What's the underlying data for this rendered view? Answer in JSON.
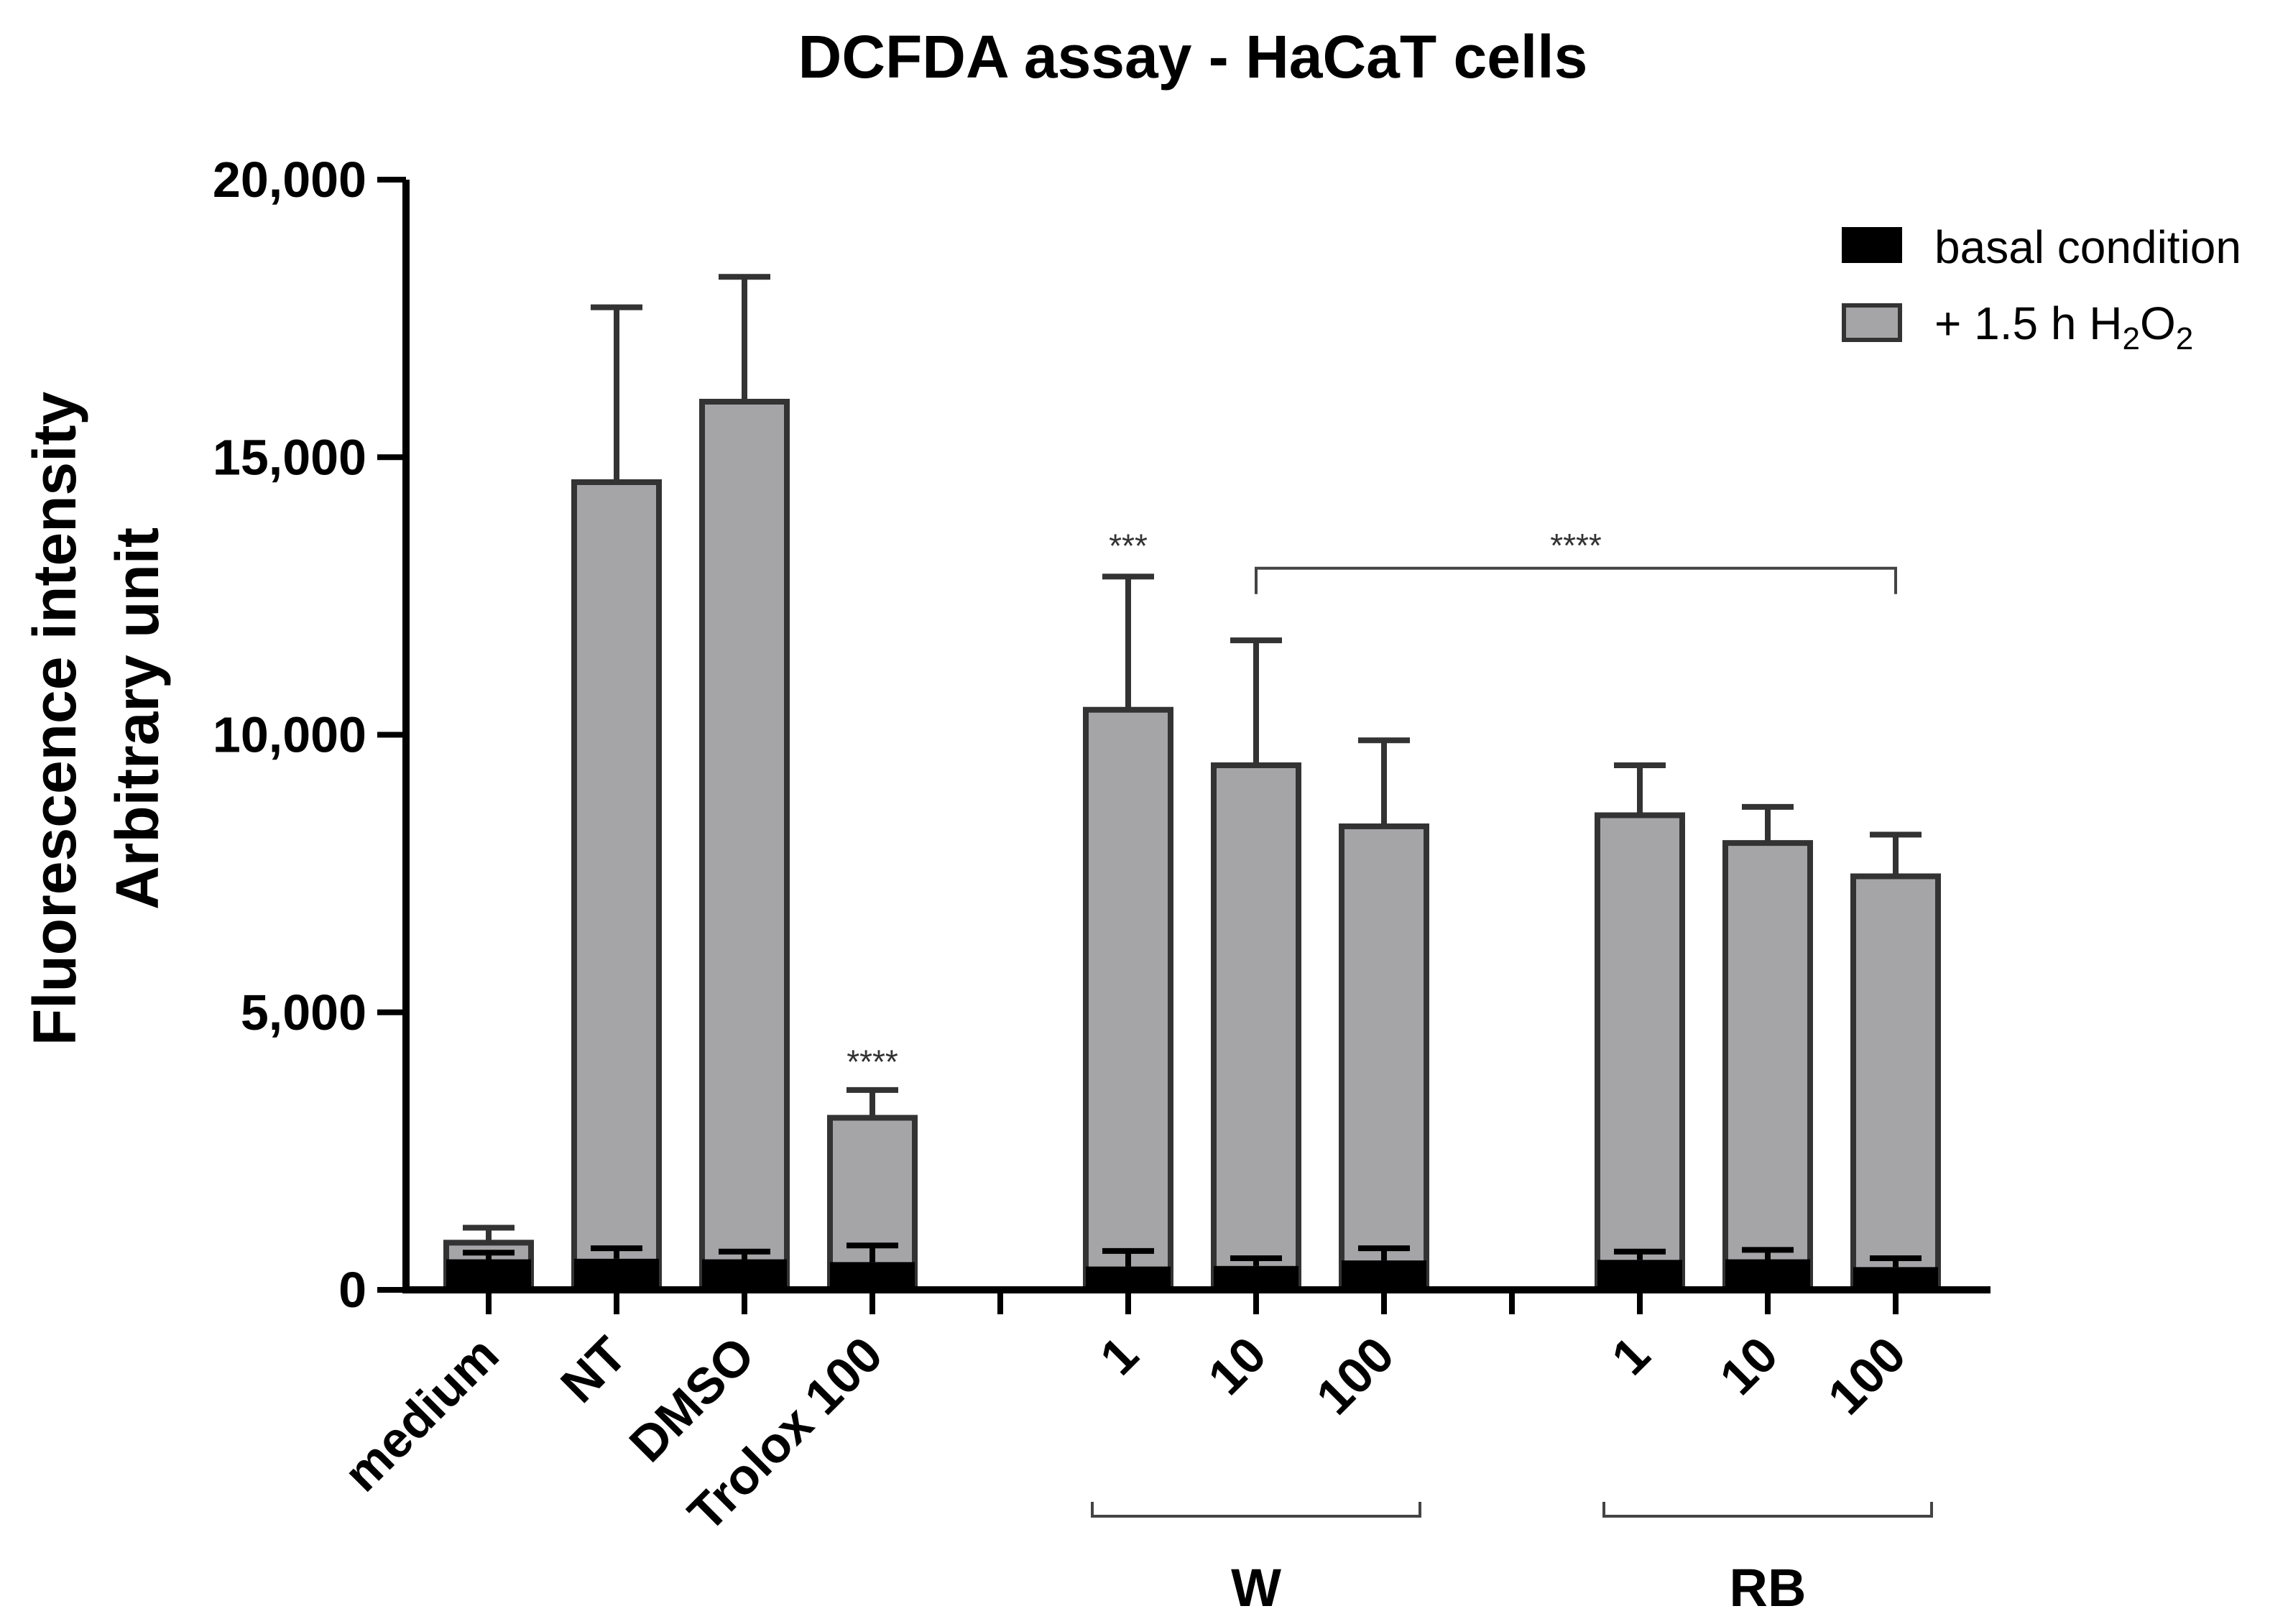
{
  "chart_data": {
    "type": "bar",
    "title": "DCFDA assay - HaCaT cells",
    "ylabel_line1": "Fluorescence intensity",
    "ylabel_line2": "Arbitrary unit",
    "xlabel": "",
    "ylim": [
      0,
      20000
    ],
    "yticks": [
      0,
      5000,
      10000,
      15000,
      20000
    ],
    "ytick_labels": [
      "0",
      "5,000",
      "10,000",
      "15,000",
      "20,000"
    ],
    "grid": false,
    "legend_position": "top-right",
    "colors": {
      "basal": "#000000",
      "h2o2": "#a5a5a8",
      "bar_edge": "#333333"
    },
    "categories": [
      "medium",
      "NT",
      "DMSO",
      "Trolox 100",
      "1",
      "10",
      "100",
      "1",
      "10",
      "100"
    ],
    "slots": [
      0,
      1,
      2,
      3,
      5,
      6,
      7,
      9,
      10,
      11
    ],
    "series": [
      {
        "name": "basal condition",
        "values": [
          550,
          560,
          550,
          500,
          420,
          430,
          530,
          540,
          550,
          410
        ],
        "errors": [
          120,
          190,
          140,
          300,
          280,
          140,
          220,
          150,
          170,
          160
        ]
      },
      {
        "name": "+ 1.5 h H2O2",
        "values": [
          850,
          14550,
          16000,
          3100,
          10450,
          9450,
          8350,
          8550,
          8050,
          7450
        ],
        "errors": [
          270,
          3150,
          2250,
          500,
          2400,
          2250,
          1550,
          900,
          650,
          750
        ]
      }
    ],
    "legend": {
      "basal_label": "basal condition",
      "h2o2_prefix": "+ 1.5 h H",
      "h2o2_sub1": "2",
      "h2o2_mid": "O",
      "h2o2_sub2": "2"
    },
    "groups": [
      {
        "label": "W",
        "from_slot": 5,
        "to_slot": 7
      },
      {
        "label": "RB",
        "from_slot": 9,
        "to_slot": 11
      }
    ],
    "annotations": [
      {
        "text": "****",
        "slot": 3,
        "y": 3900
      },
      {
        "text": "***",
        "slot": 5,
        "y": 13200
      },
      {
        "text": "****",
        "bracket_from_slot": 6,
        "bracket_to_slot": 11,
        "y": 13000
      }
    ]
  }
}
